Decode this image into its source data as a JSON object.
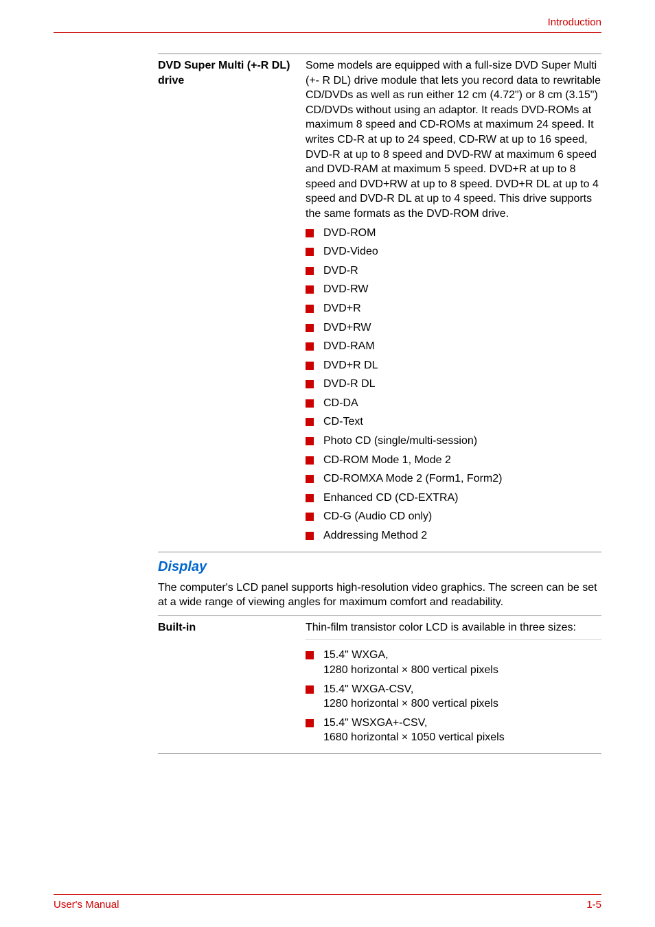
{
  "colors": {
    "accent_red": "#cc0000",
    "section_blue": "#0066cc",
    "border_gray": "#888888",
    "sub_border_gray": "#cccccc",
    "text": "#000000",
    "background": "#ffffff"
  },
  "header": {
    "breadcrumb": "Introduction"
  },
  "dvd_block": {
    "label": "DVD Super Multi (+-R DL) drive",
    "description": "Some models are equipped with a full-size DVD Super Multi (+- R DL) drive module that lets you record data to rewritable CD/DVDs as well as run either 12 cm (4.72\") or 8 cm (3.15\") CD/DVDs without using an adaptor. It reads DVD-ROMs at maximum 8 speed and CD-ROMs at maximum 24 speed. It writes CD-R at up to 24 speed, CD-RW at up to 16 speed, DVD-R at up to 8 speed and DVD-RW at maximum 6 speed and DVD-RAM at maximum 5 speed. DVD+R at up to 8 speed and DVD+RW at up to 8 speed. DVD+R DL at up to 4 speed and DVD-R DL at up to 4 speed. This drive supports the same formats as the DVD-ROM drive.",
    "formats": [
      "DVD-ROM",
      "DVD-Video",
      "DVD-R",
      "DVD-RW",
      "DVD+R",
      "DVD+RW",
      "DVD-RAM",
      "DVD+R DL",
      "DVD-R DL",
      "CD-DA",
      "CD-Text",
      "Photo CD (single/multi-session)",
      "CD-ROM Mode 1, Mode 2",
      "CD-ROMXA Mode 2 (Form1, Form2)",
      "Enhanced CD (CD-EXTRA)",
      "CD-G (Audio CD only)",
      "Addressing Method 2"
    ]
  },
  "display_section": {
    "title": "Display",
    "intro": "The computer's LCD panel supports high-resolution video graphics. The screen can be set at a wide range of viewing angles for maximum comfort and readability."
  },
  "builtin_block": {
    "label": "Built-in",
    "description": "Thin-film transistor color LCD is available in three sizes:",
    "sizes": [
      {
        "line1": "15.4\" WXGA,",
        "line2": "1280 horizontal × 800 vertical pixels"
      },
      {
        "line1": "15.4\" WXGA-CSV,",
        "line2": "1280 horizontal × 800 vertical pixels"
      },
      {
        "line1": "15.4\" WSXGA+-CSV,",
        "line2": "1680 horizontal × 1050 vertical pixels"
      }
    ]
  },
  "footer": {
    "left": "User's Manual",
    "right": "1-5"
  }
}
